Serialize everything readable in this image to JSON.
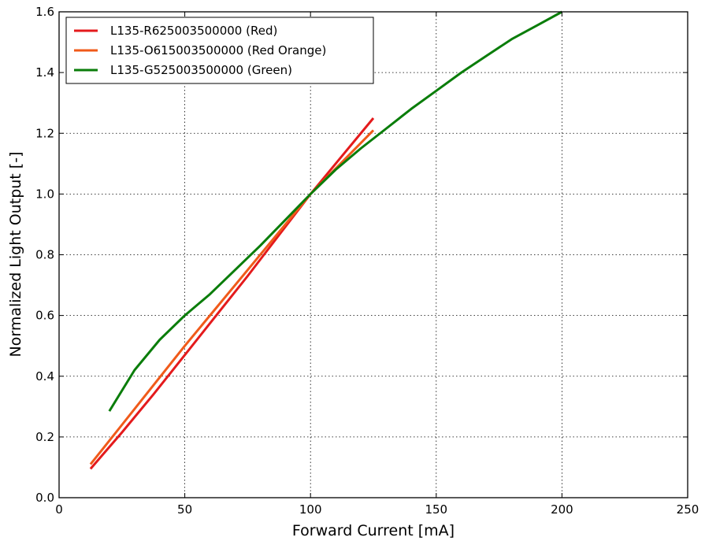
{
  "chart_data": {
    "type": "line",
    "title": "",
    "xlabel": "Forward Current [mA]",
    "ylabel": "Normalized Light Output [-]",
    "xlim": [
      0,
      250
    ],
    "ylim": [
      0.0,
      1.6
    ],
    "x_ticks": [
      "0",
      "50",
      "100",
      "150",
      "200",
      "250"
    ],
    "y_ticks": [
      "0.0",
      "0.2",
      "0.4",
      "0.6",
      "0.8",
      "1.0",
      "1.2",
      "1.4",
      "1.6"
    ],
    "grid": true,
    "grid_style": "dotted",
    "legend_position": "top-left",
    "series": [
      {
        "name": "L135-R625003500000 (Red)",
        "color": "#e41a1c",
        "x": [
          12.5,
          25,
          37.5,
          50,
          62.5,
          75,
          87.5,
          100,
          112.5,
          125
        ],
        "y": [
          0.095,
          0.215,
          0.34,
          0.47,
          0.6,
          0.73,
          0.865,
          1.0,
          1.125,
          1.25
        ]
      },
      {
        "name": "L135-O615003500000 (Red Orange)",
        "color": "#f05a1a",
        "x": [
          12.5,
          25,
          37.5,
          50,
          62.5,
          75,
          87.5,
          100,
          112.5,
          125
        ],
        "y": [
          0.11,
          0.24,
          0.37,
          0.5,
          0.625,
          0.75,
          0.875,
          1.0,
          1.105,
          1.21
        ]
      },
      {
        "name": "L135-G525003500000 (Green)",
        "color": "#0a7d0a",
        "x": [
          20,
          30,
          40,
          50,
          60,
          70,
          80,
          90,
          100,
          110,
          120,
          130,
          140,
          150,
          160,
          170,
          180,
          190,
          200
        ],
        "y": [
          0.285,
          0.42,
          0.52,
          0.6,
          0.67,
          0.75,
          0.83,
          0.915,
          1.0,
          1.08,
          1.15,
          1.215,
          1.28,
          1.34,
          1.4,
          1.455,
          1.51,
          1.555,
          1.6
        ]
      }
    ]
  }
}
